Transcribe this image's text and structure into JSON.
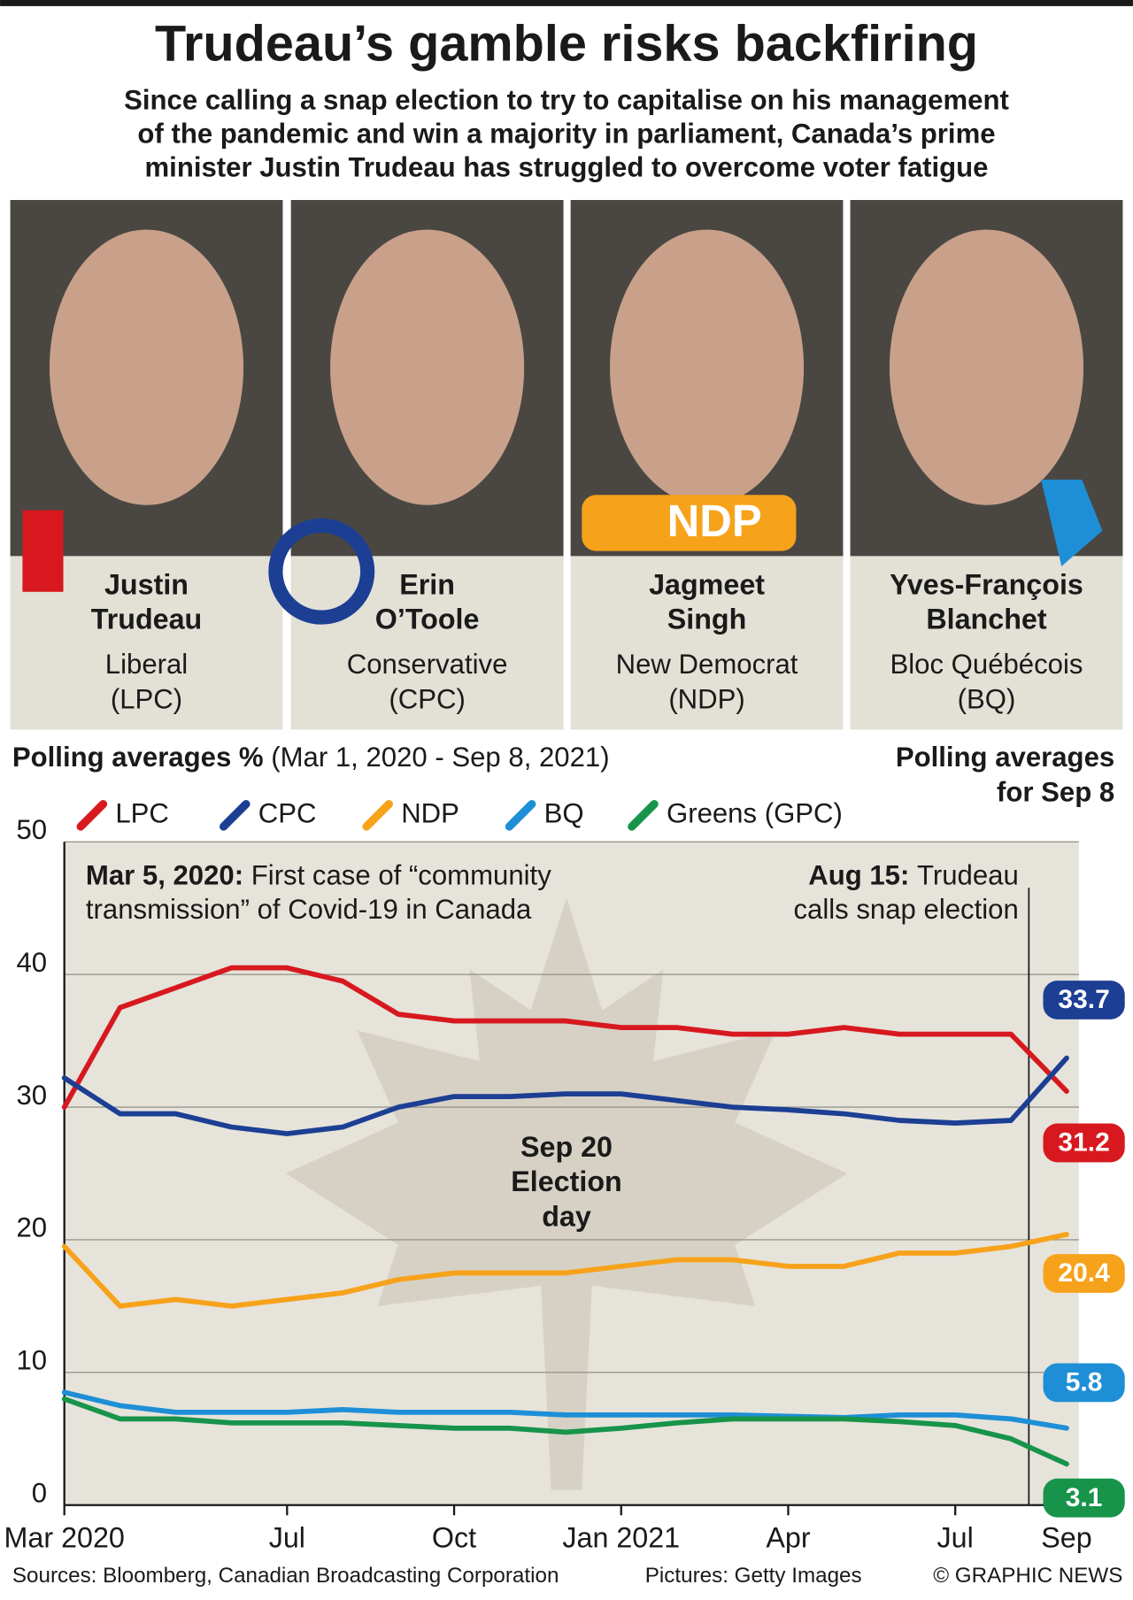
{
  "header": {
    "title": "Trudeau’s gamble risks backfiring",
    "subtitle_lines": [
      "Since calling a snap election to try to capitalise on his management",
      "of the pandemic and win a majority in parliament, Canada’s prime",
      "minister Justin Trudeau has struggled to overcome voter fatigue"
    ]
  },
  "leaders": [
    {
      "first": "Justin",
      "last": "Trudeau",
      "party": "Liberal",
      "abbr": "(LPC)"
    },
    {
      "first": "Erin",
      "last": "O’Toole",
      "party": "Conservative",
      "abbr": "(CPC)"
    },
    {
      "first": "Jagmeet",
      "last": "Singh",
      "party": "New Democrat",
      "abbr": "(NDP)",
      "logo": "NDP"
    },
    {
      "first": "Yves-François",
      "last": "Blanchet",
      "party": "Bloc Québécois",
      "abbr": "(BQ)"
    }
  ],
  "chart_data": {
    "type": "line",
    "title": "Polling averages %",
    "subtitle": "(Mar 1, 2020 - Sep 8, 2021)",
    "end_label_title_lines": [
      "Polling averages",
      "for Sep 8"
    ],
    "x": [
      "2020-03",
      "2020-04",
      "2020-05",
      "2020-06",
      "2020-07",
      "2020-08",
      "2020-09",
      "2020-10",
      "2020-11",
      "2020-12",
      "2021-01",
      "2021-02",
      "2021-03",
      "2021-04",
      "2021-05",
      "2021-06",
      "2021-07",
      "2021-08",
      "2021-09"
    ],
    "xlim": [
      "2020-03",
      "2021-09"
    ],
    "xticks": [
      {
        "value": "2020-03",
        "label": "Mar 2020"
      },
      {
        "value": "2020-07",
        "label": "Jul"
      },
      {
        "value": "2020-10",
        "label": "Oct"
      },
      {
        "value": "2021-01",
        "label": "Jan 2021"
      },
      {
        "value": "2021-04",
        "label": "Apr"
      },
      {
        "value": "2021-07",
        "label": "Jul"
      },
      {
        "value": "2021-09",
        "label": "Sep"
      }
    ],
    "ylim": [
      0,
      50
    ],
    "yticks": [
      0,
      10,
      20,
      30,
      40,
      50
    ],
    "grid": true,
    "series": [
      {
        "name": "LPC",
        "color": "#d7191f",
        "values": [
          30,
          37.5,
          39,
          40.5,
          40.5,
          39.5,
          37,
          36.5,
          36.5,
          36.5,
          36,
          36,
          35.5,
          35.5,
          36,
          35.5,
          35.5,
          35.5,
          31.2
        ]
      },
      {
        "name": "CPC",
        "color": "#1c3f94",
        "values": [
          32.2,
          29.5,
          29.5,
          28.5,
          28,
          28.5,
          30,
          30.8,
          30.8,
          31,
          31,
          30.5,
          30,
          29.8,
          29.5,
          29,
          28.8,
          29,
          33.7
        ]
      },
      {
        "name": "NDP",
        "color": "#f7a21b",
        "values": [
          19.5,
          15,
          15.5,
          15,
          15.5,
          16,
          17,
          17.5,
          17.5,
          17.5,
          18,
          18.5,
          18.5,
          18,
          18,
          19,
          19,
          19.5,
          20.4
        ]
      },
      {
        "name": "BQ",
        "color": "#1e8fd6",
        "values": [
          8.5,
          7.5,
          7,
          7,
          7,
          7.2,
          7,
          7,
          7,
          6.8,
          6.8,
          6.8,
          6.8,
          6.7,
          6.6,
          6.8,
          6.8,
          6.5,
          5.8
        ]
      },
      {
        "name": "Greens (GPC)",
        "color": "#17944a",
        "values": [
          8,
          6.5,
          6.5,
          6.2,
          6.2,
          6.2,
          6,
          5.8,
          5.8,
          5.5,
          5.8,
          6.2,
          6.5,
          6.5,
          6.5,
          6.3,
          6,
          5,
          3.1
        ]
      }
    ],
    "annotations": [
      {
        "label": "Mar 5, 2020:",
        "lines": [
          "First case of “community",
          "transmission” of Covid-19 in Canada"
        ]
      },
      {
        "label": "Aug 15:",
        "lines": [
          "Trudeau",
          "calls snap election"
        ]
      },
      {
        "lines": [
          "Sep 20",
          "Election",
          "day"
        ]
      }
    ]
  },
  "footer": {
    "sources": "Sources: Bloomberg, Canadian Broadcasting Corporation",
    "pictures": "Pictures: Getty Images",
    "credit": "© GRAPHIC NEWS"
  }
}
